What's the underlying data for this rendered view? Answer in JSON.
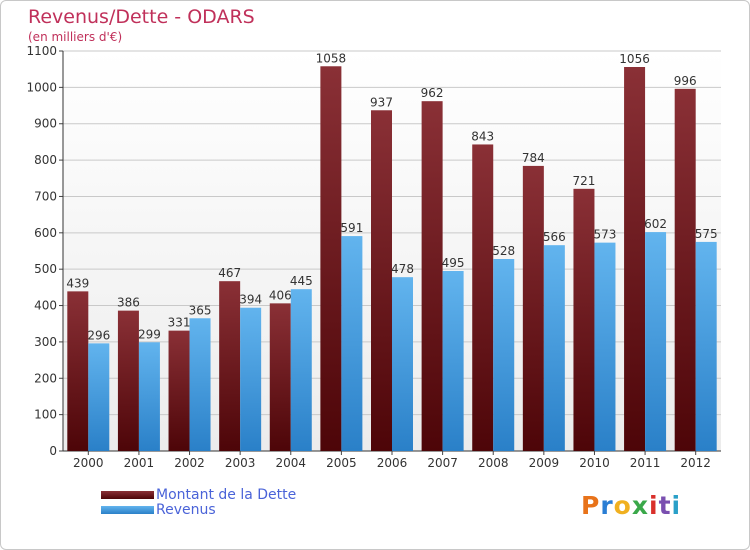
{
  "chart_data": {
    "type": "bar",
    "title": "Revenus/Dette - ODARS",
    "subtitle": "(en milliers d'€)",
    "categories": [
      "2000",
      "2001",
      "2002",
      "2003",
      "2004",
      "2005",
      "2006",
      "2007",
      "2008",
      "2009",
      "2010",
      "2011",
      "2012"
    ],
    "series": [
      {
        "name": "Montant de la Dette",
        "color": "#6e1f24",
        "values": [
          439,
          386,
          331,
          467,
          406,
          1058,
          937,
          962,
          843,
          784,
          721,
          1056,
          996
        ]
      },
      {
        "name": "Revenus",
        "color": "#3c96dc",
        "values": [
          296,
          299,
          365,
          394,
          445,
          591,
          478,
          495,
          528,
          566,
          573,
          602,
          575
        ]
      }
    ],
    "ylim": [
      0,
      1100
    ],
    "yticks": [
      0,
      100,
      200,
      300,
      400,
      500,
      600,
      700,
      800,
      900,
      1000,
      1100
    ],
    "grid": true,
    "legend_position": "bottom-left"
  },
  "logo": {
    "text": "Proxiti",
    "colors": [
      "#e8731a",
      "#2a7ed4",
      "#f0b020",
      "#3aa84a",
      "#d9302b",
      "#7a4fb0",
      "#2aa0c8"
    ]
  }
}
